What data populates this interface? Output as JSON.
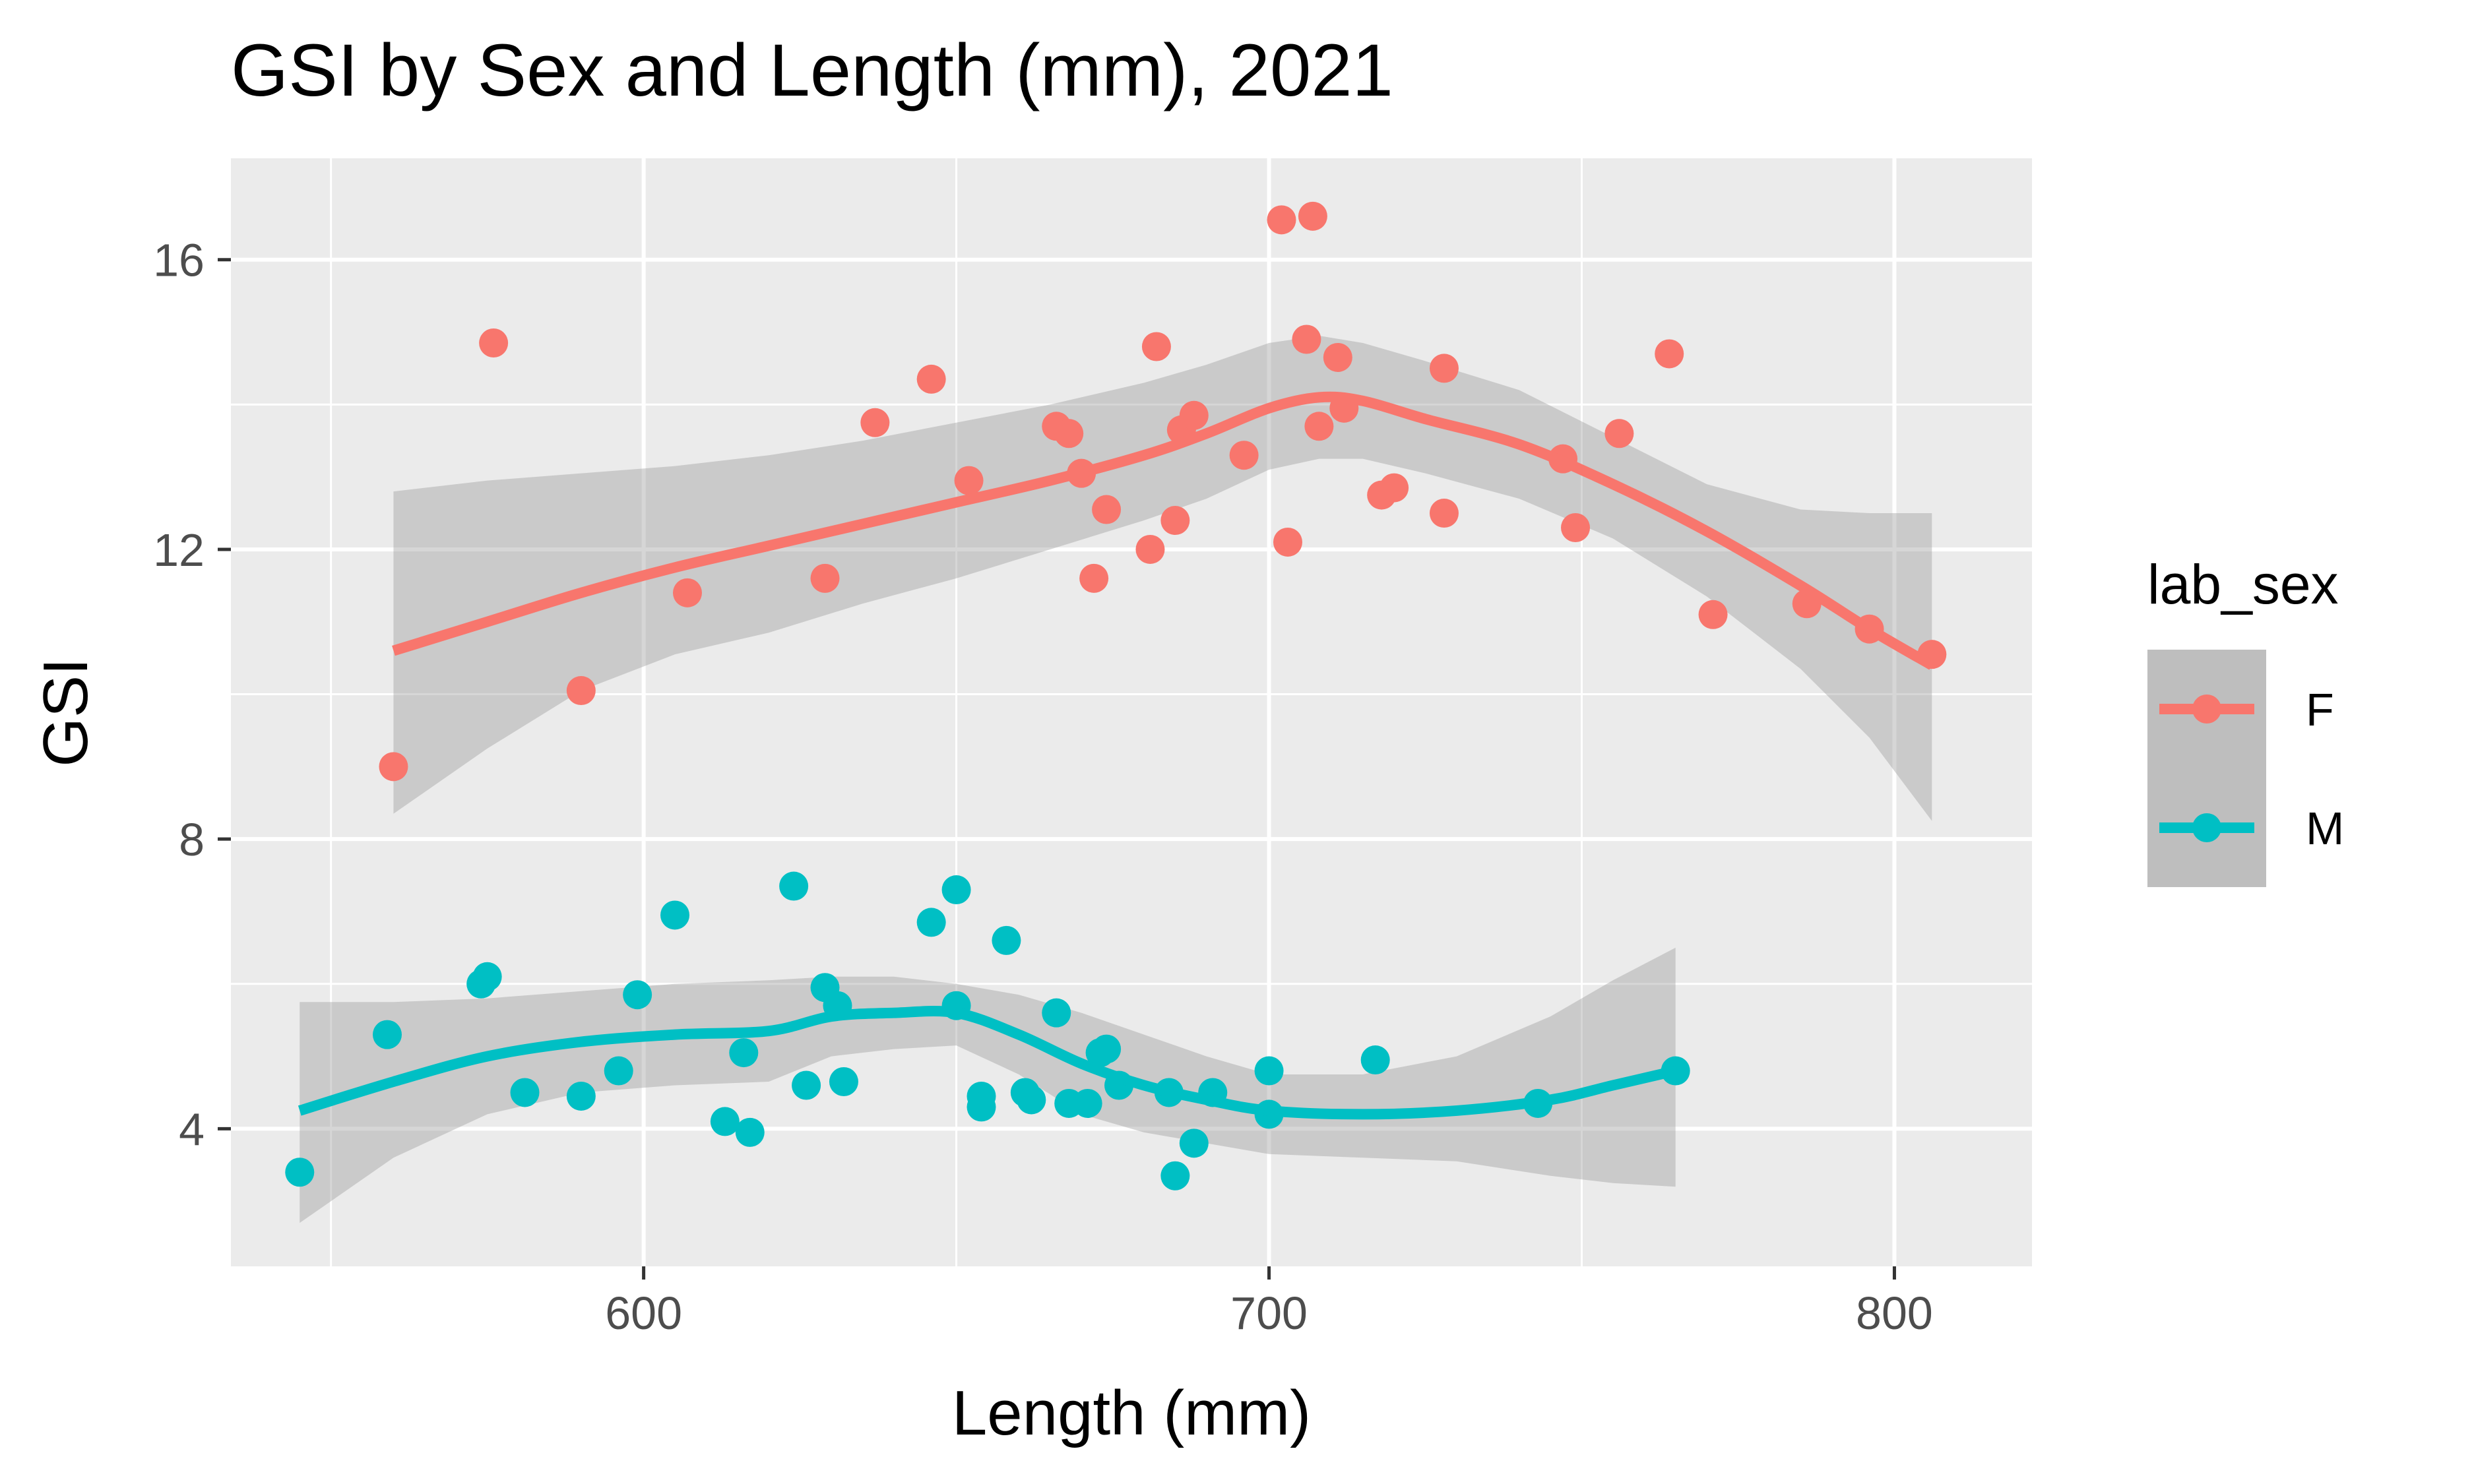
{
  "chart_data": {
    "type": "scatter",
    "title": "GSI by Sex and Length (mm), 2021",
    "xlabel": "Length (mm)",
    "ylabel": "GSI",
    "xlim": [
      534,
      822
    ],
    "ylim": [
      2.1,
      17.4
    ],
    "xticks": [
      600,
      700,
      800
    ],
    "yticks": [
      4,
      8,
      12,
      16
    ],
    "grid": true,
    "legend": {
      "title": "lab_sex",
      "position": "right"
    },
    "series": [
      {
        "name": "F",
        "color": "#F8766D",
        "points": [
          [
            560,
            9.0
          ],
          [
            576,
            14.85
          ],
          [
            590,
            10.05
          ],
          [
            607,
            11.4
          ],
          [
            629,
            11.6
          ],
          [
            637,
            13.75
          ],
          [
            646,
            14.35
          ],
          [
            652,
            12.95
          ],
          [
            666,
            13.7
          ],
          [
            668,
            13.6
          ],
          [
            670,
            13.05
          ],
          [
            672,
            11.6
          ],
          [
            674,
            12.55
          ],
          [
            681,
            12.0
          ],
          [
            682,
            14.8
          ],
          [
            685,
            12.4
          ],
          [
            686,
            13.65
          ],
          [
            688,
            13.85
          ],
          [
            696,
            13.3
          ],
          [
            702,
            16.55
          ],
          [
            703,
            12.1
          ],
          [
            706,
            14.9
          ],
          [
            707,
            16.6
          ],
          [
            708,
            13.7
          ],
          [
            711,
            14.65
          ],
          [
            712,
            13.95
          ],
          [
            718,
            12.75
          ],
          [
            720,
            12.85
          ],
          [
            728,
            14.5
          ],
          [
            728,
            12.5
          ],
          [
            747,
            13.25
          ],
          [
            749,
            12.3
          ],
          [
            756,
            13.6
          ],
          [
            764,
            14.7
          ],
          [
            771,
            11.1
          ],
          [
            786,
            11.25
          ],
          [
            796,
            10.9
          ],
          [
            806,
            10.55
          ]
        ],
        "smooth": [
          [
            560,
            10.6
          ],
          [
            575,
            11.0
          ],
          [
            590,
            11.4
          ],
          [
            605,
            11.75
          ],
          [
            620,
            12.05
          ],
          [
            635,
            12.35
          ],
          [
            650,
            12.65
          ],
          [
            665,
            12.95
          ],
          [
            680,
            13.3
          ],
          [
            690,
            13.6
          ],
          [
            700,
            13.95
          ],
          [
            708,
            14.1
          ],
          [
            715,
            14.05
          ],
          [
            725,
            13.8
          ],
          [
            740,
            13.45
          ],
          [
            755,
            12.9
          ],
          [
            770,
            12.25
          ],
          [
            785,
            11.5
          ],
          [
            796,
            10.9
          ],
          [
            806,
            10.4
          ]
        ],
        "band_upper": [
          [
            560,
            12.8
          ],
          [
            575,
            12.95
          ],
          [
            590,
            13.05
          ],
          [
            605,
            13.15
          ],
          [
            620,
            13.3
          ],
          [
            635,
            13.5
          ],
          [
            650,
            13.75
          ],
          [
            665,
            14.0
          ],
          [
            680,
            14.3
          ],
          [
            690,
            14.55
          ],
          [
            700,
            14.85
          ],
          [
            708,
            14.95
          ],
          [
            715,
            14.85
          ],
          [
            725,
            14.6
          ],
          [
            740,
            14.2
          ],
          [
            755,
            13.55
          ],
          [
            770,
            12.9
          ],
          [
            785,
            12.55
          ],
          [
            796,
            12.5
          ],
          [
            806,
            12.5
          ]
        ],
        "band_lower": [
          [
            560,
            8.35
          ],
          [
            575,
            9.25
          ],
          [
            590,
            10.05
          ],
          [
            605,
            10.55
          ],
          [
            620,
            10.85
          ],
          [
            635,
            11.25
          ],
          [
            650,
            11.6
          ],
          [
            665,
            12.0
          ],
          [
            680,
            12.4
          ],
          [
            690,
            12.7
          ],
          [
            700,
            13.1
          ],
          [
            708,
            13.25
          ],
          [
            715,
            13.25
          ],
          [
            725,
            13.05
          ],
          [
            740,
            12.7
          ],
          [
            755,
            12.15
          ],
          [
            770,
            11.35
          ],
          [
            785,
            10.35
          ],
          [
            796,
            9.4
          ],
          [
            806,
            8.25
          ]
        ]
      },
      {
        "name": "M",
        "color": "#00BFC4",
        "points": [
          [
            545,
            3.4
          ],
          [
            559,
            5.3
          ],
          [
            574,
            6.0
          ],
          [
            575,
            6.1
          ],
          [
            581,
            4.5
          ],
          [
            590,
            4.45
          ],
          [
            596,
            4.8
          ],
          [
            599,
            5.85
          ],
          [
            605,
            6.95
          ],
          [
            613,
            4.1
          ],
          [
            616,
            5.05
          ],
          [
            617,
            3.95
          ],
          [
            624,
            7.35
          ],
          [
            626,
            4.6
          ],
          [
            629,
            5.95
          ],
          [
            631,
            5.7
          ],
          [
            632,
            4.65
          ],
          [
            646,
            6.85
          ],
          [
            650,
            7.3
          ],
          [
            650,
            5.7
          ],
          [
            654,
            4.45
          ],
          [
            654,
            4.3
          ],
          [
            658,
            6.6
          ],
          [
            661,
            4.5
          ],
          [
            662,
            4.4
          ],
          [
            666,
            5.6
          ],
          [
            668,
            4.35
          ],
          [
            671,
            4.35
          ],
          [
            673,
            5.05
          ],
          [
            674,
            5.1
          ],
          [
            676,
            4.6
          ],
          [
            684,
            4.5
          ],
          [
            685,
            3.35
          ],
          [
            688,
            3.8
          ],
          [
            691,
            4.5
          ],
          [
            700,
            4.8
          ],
          [
            700,
            4.2
          ],
          [
            717,
            4.95
          ],
          [
            743,
            4.35
          ],
          [
            765,
            4.8
          ]
        ],
        "smooth": [
          [
            545,
            4.25
          ],
          [
            560,
            4.65
          ],
          [
            575,
            5.0
          ],
          [
            590,
            5.2
          ],
          [
            605,
            5.3
          ],
          [
            620,
            5.35
          ],
          [
            630,
            5.55
          ],
          [
            640,
            5.6
          ],
          [
            650,
            5.6
          ],
          [
            660,
            5.3
          ],
          [
            670,
            4.9
          ],
          [
            680,
            4.6
          ],
          [
            690,
            4.4
          ],
          [
            700,
            4.25
          ],
          [
            715,
            4.2
          ],
          [
            730,
            4.25
          ],
          [
            745,
            4.4
          ],
          [
            755,
            4.6
          ],
          [
            765,
            4.8
          ]
        ],
        "band_upper": [
          [
            545,
            5.75
          ],
          [
            560,
            5.75
          ],
          [
            575,
            5.8
          ],
          [
            590,
            5.9
          ],
          [
            605,
            6.0
          ],
          [
            620,
            6.05
          ],
          [
            630,
            6.1
          ],
          [
            640,
            6.1
          ],
          [
            650,
            6.0
          ],
          [
            660,
            5.85
          ],
          [
            670,
            5.6
          ],
          [
            680,
            5.3
          ],
          [
            690,
            5.0
          ],
          [
            700,
            4.75
          ],
          [
            715,
            4.75
          ],
          [
            730,
            5.0
          ],
          [
            745,
            5.55
          ],
          [
            755,
            6.05
          ],
          [
            765,
            6.5
          ]
        ],
        "band_lower": [
          [
            545,
            2.7
          ],
          [
            560,
            3.6
          ],
          [
            575,
            4.2
          ],
          [
            590,
            4.5
          ],
          [
            605,
            4.6
          ],
          [
            620,
            4.65
          ],
          [
            630,
            5.0
          ],
          [
            640,
            5.1
          ],
          [
            650,
            5.15
          ],
          [
            660,
            4.75
          ],
          [
            670,
            4.2
          ],
          [
            680,
            3.95
          ],
          [
            690,
            3.8
          ],
          [
            700,
            3.65
          ],
          [
            715,
            3.6
          ],
          [
            730,
            3.55
          ],
          [
            745,
            3.35
          ],
          [
            755,
            3.25
          ],
          [
            765,
            3.2
          ]
        ]
      }
    ]
  }
}
